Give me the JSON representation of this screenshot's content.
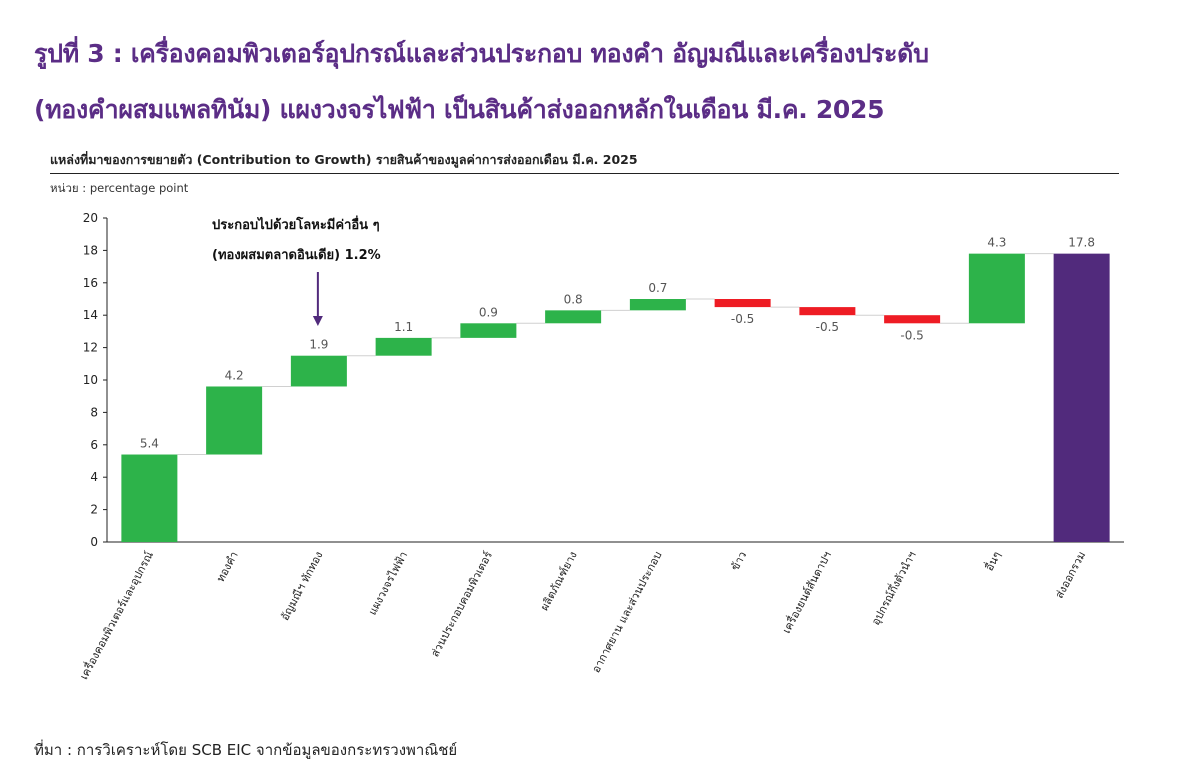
{
  "header": {
    "title_line1": "รูปที่ 3 : เครื่องคอมพิวเตอร์อุปกรณ์และส่วนประกอบ ทองคำ อัญมณีและเครื่องประดับ",
    "title_line2": "(ทองคำผสมแพลทินัม) แผงวงจรไฟฟ้า เป็นสินค้าส่งออกหลักในเดือน มี.ค. 2025",
    "subtitle": "แหล่งที่มาของการขยายตัว (Contribution to Growth) รายสินค้าของมูลค่าการส่งออกเดือน มี.ค. 2025",
    "unit": "หน่วย : percentage point"
  },
  "footer": {
    "source": "ที่มา : การวิเคราะห์โดย SCB EIC จากข้อมูลของกระทรวงพาณิชย์"
  },
  "annotation": {
    "line1": "ประกอบไปด้วยโลหะมีค่าอื่น ๆ",
    "line2": "(ทองผสมตลาดอินเดีย) 1.2%",
    "target_index": 2
  },
  "colors": {
    "positive": "#2db34a",
    "negative": "#ee1c24",
    "total": "#512a7c",
    "title": "#5b2d86",
    "arrow": "#512a7c"
  },
  "chart_data": {
    "type": "bar",
    "subtype": "waterfall",
    "ylim": [
      0,
      20
    ],
    "yticks": [
      0,
      2,
      4,
      6,
      8,
      10,
      12,
      14,
      16,
      18,
      20
    ],
    "grid": false,
    "categories": [
      "เครื่องคอมพิวเตอร์และอุปกรณ์",
      "ทองคำ",
      "อัญมณีฯ ทักทอง",
      "แผงวงจรไฟฟ้า",
      "ส่วนประกอบคอมพิวเตอร์",
      "ผลิตภัณฑ์ยาง",
      "อากาศยาน และส่วนประกอบ",
      "ข้าว",
      "เครื่องยนต์สันดาปฯ",
      "อุปกรณ์กึ่งตัวนำฯ",
      "อื่นๆ",
      "ส่งออกรวม"
    ],
    "values": [
      5.4,
      4.2,
      1.9,
      1.1,
      0.9,
      0.8,
      0.7,
      -0.5,
      -0.5,
      -0.5,
      4.3,
      17.8
    ],
    "labels": [
      "5.4",
      "4.2",
      "1.9",
      "1.1",
      "0.9",
      "0.8",
      "0.7",
      "-0.5",
      "-0.5",
      "-0.5",
      "4.3",
      "17.8"
    ],
    "total_index": 11
  }
}
